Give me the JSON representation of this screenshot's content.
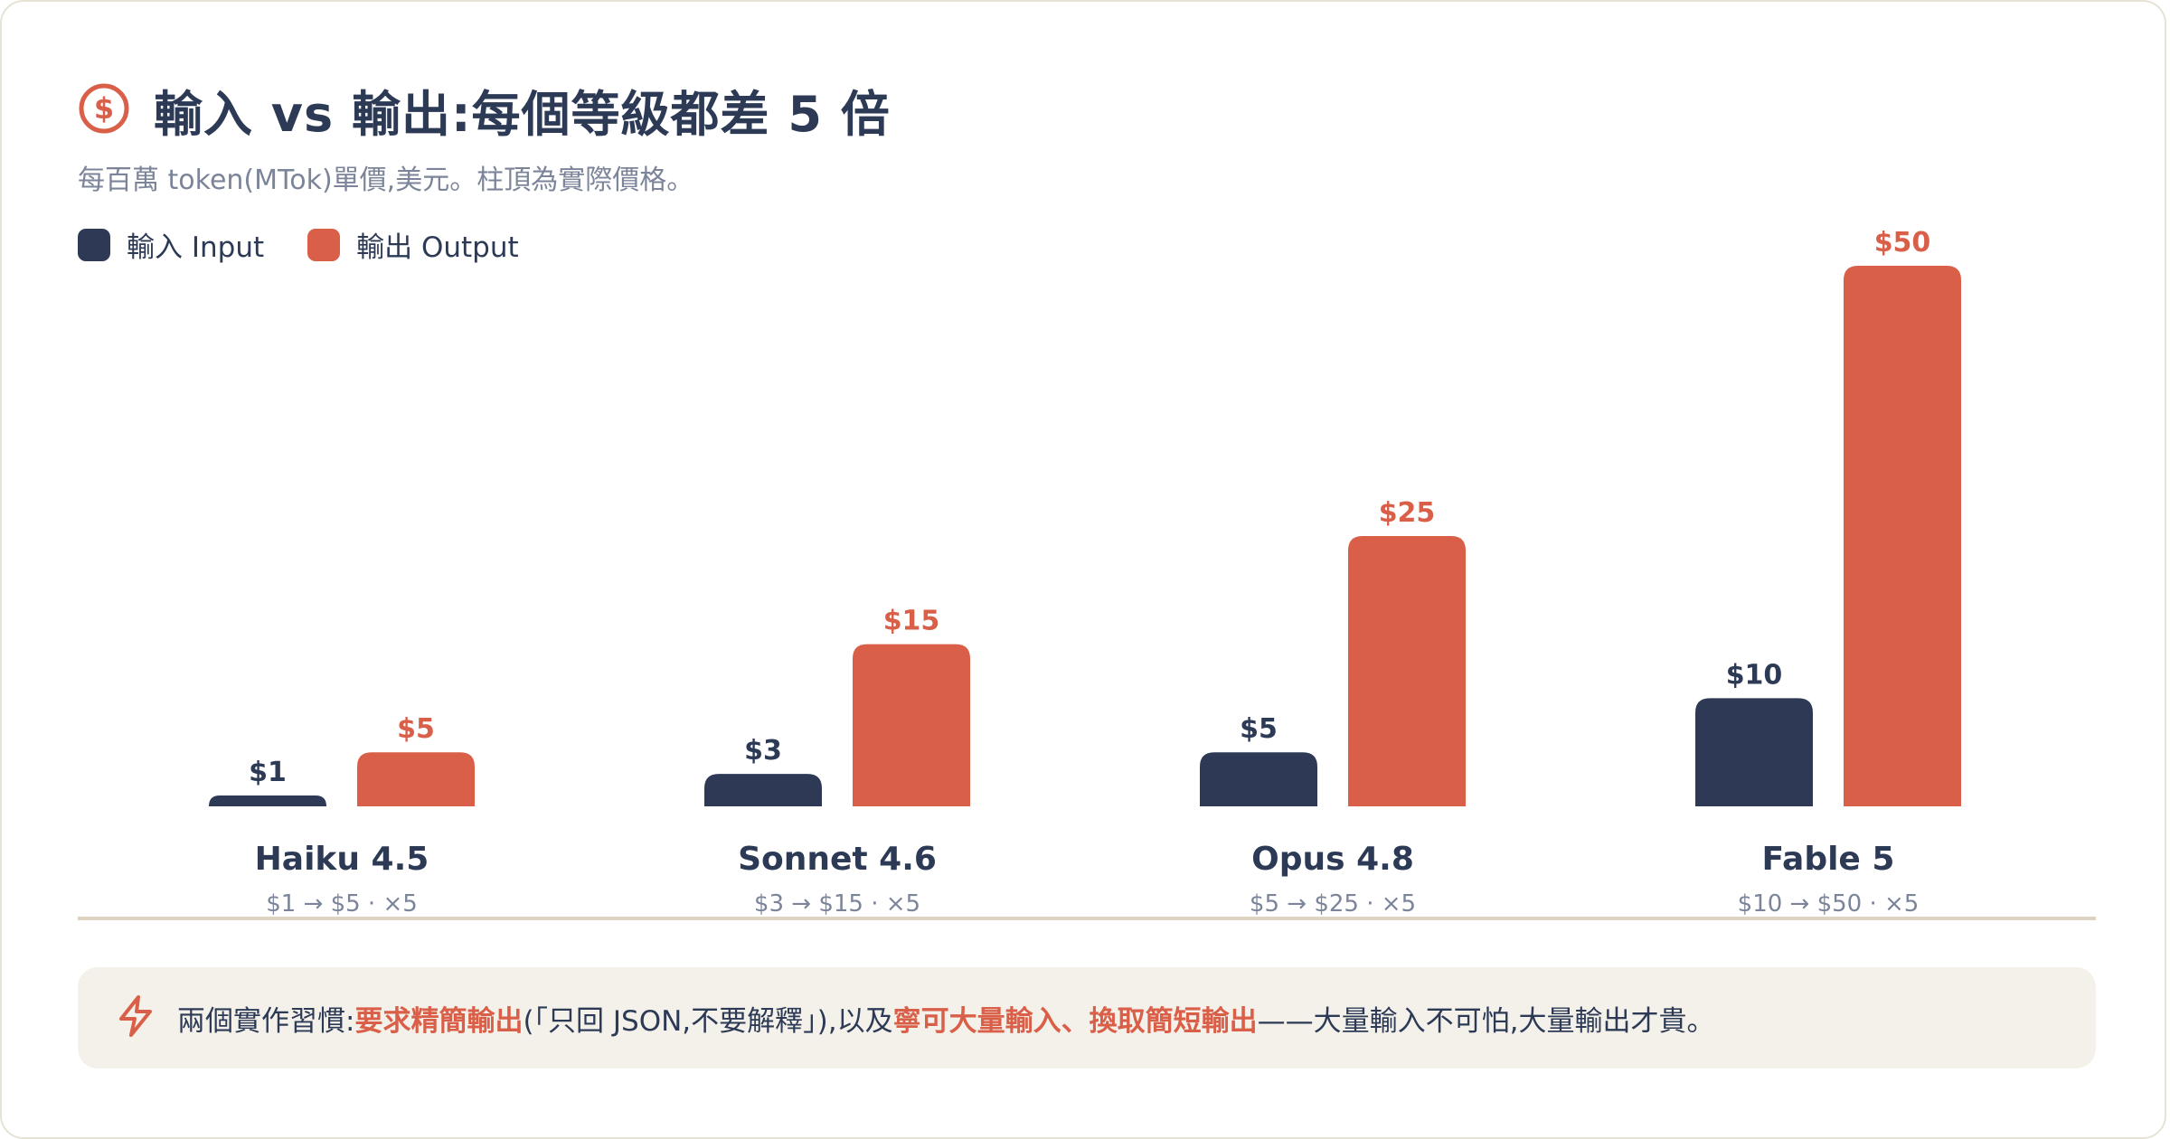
{
  "header": {
    "icon": "dollar-circle-icon",
    "title": "輸入 vs 輸出:每個等級都差 5 倍",
    "subtitle": "每百萬 token(MTok)單價,美元。柱頂為實際價格。"
  },
  "legend": {
    "items": [
      {
        "label": "輸入 Input",
        "color": "#2e3a55"
      },
      {
        "label": "輸出 Output",
        "color": "#d95f49"
      }
    ]
  },
  "chart_data": {
    "type": "bar",
    "categories": [
      "Haiku 4.5",
      "Sonnet 4.6",
      "Opus 4.8",
      "Fable 5"
    ],
    "category_notes": [
      "$1 → $5 · ×5",
      "$3 → $15 · ×5",
      "$5 → $25 · ×5",
      "$10 → $50 · ×5"
    ],
    "series": [
      {
        "name": "輸入 Input",
        "color": "#2e3a55",
        "values": [
          1,
          3,
          5,
          10
        ],
        "labels": [
          "$1",
          "$3",
          "$5",
          "$10"
        ]
      },
      {
        "name": "輸出 Output",
        "color": "#d95f49",
        "values": [
          5,
          15,
          25,
          50
        ],
        "labels": [
          "$5",
          "$15",
          "$25",
          "$50"
        ]
      }
    ],
    "title": "輸入 vs 輸出:每個等級都差 5 倍",
    "xlabel": "",
    "ylabel": "",
    "ylim": [
      0,
      50
    ],
    "grid": false,
    "legend": "top-left"
  },
  "footer": {
    "icon": "lightning-icon",
    "prefix": "兩個實作習慣:",
    "highlight1": "要求精簡輸出",
    "middle": "(「只回 JSON,不要解釋」),以及",
    "highlight2": "寧可大量輸入、換取簡短輸出",
    "suffix": "——大量輸入不可怕,大量輸出才貴。"
  },
  "colors": {
    "ink": "#2d3a56",
    "accent": "#d95f49",
    "muted": "#7b8499",
    "baseline": "#ddd3c0"
  }
}
